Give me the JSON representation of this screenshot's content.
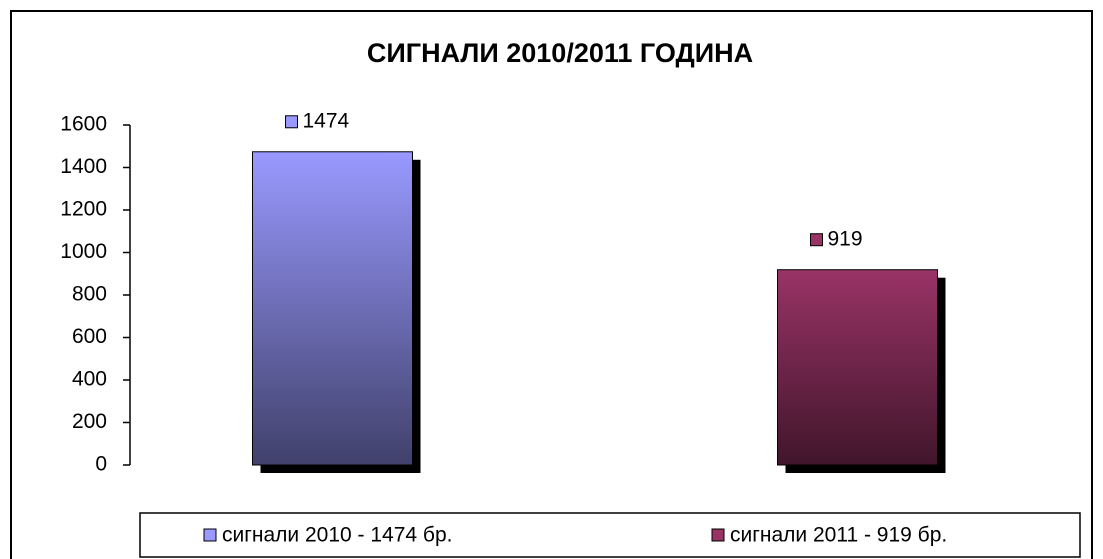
{
  "chart_data": {
    "type": "bar",
    "title": "СИГНАЛИ 2010/2011 ГОДИНА",
    "categories": [
      null
    ],
    "series": [
      {
        "name": "сигнали 2010 - 1474 бр.",
        "color": "#9999ff",
        "values": [
          1474
        ]
      },
      {
        "name": "сигнали 2011 - 919 бр.",
        "color": "#993366",
        "values": [
          919
        ]
      }
    ],
    "ylim": [
      0,
      1600
    ],
    "yticks": [
      0,
      200,
      400,
      600,
      800,
      1000,
      1200,
      1400,
      1600
    ],
    "grid": false,
    "legend": "bottom"
  }
}
